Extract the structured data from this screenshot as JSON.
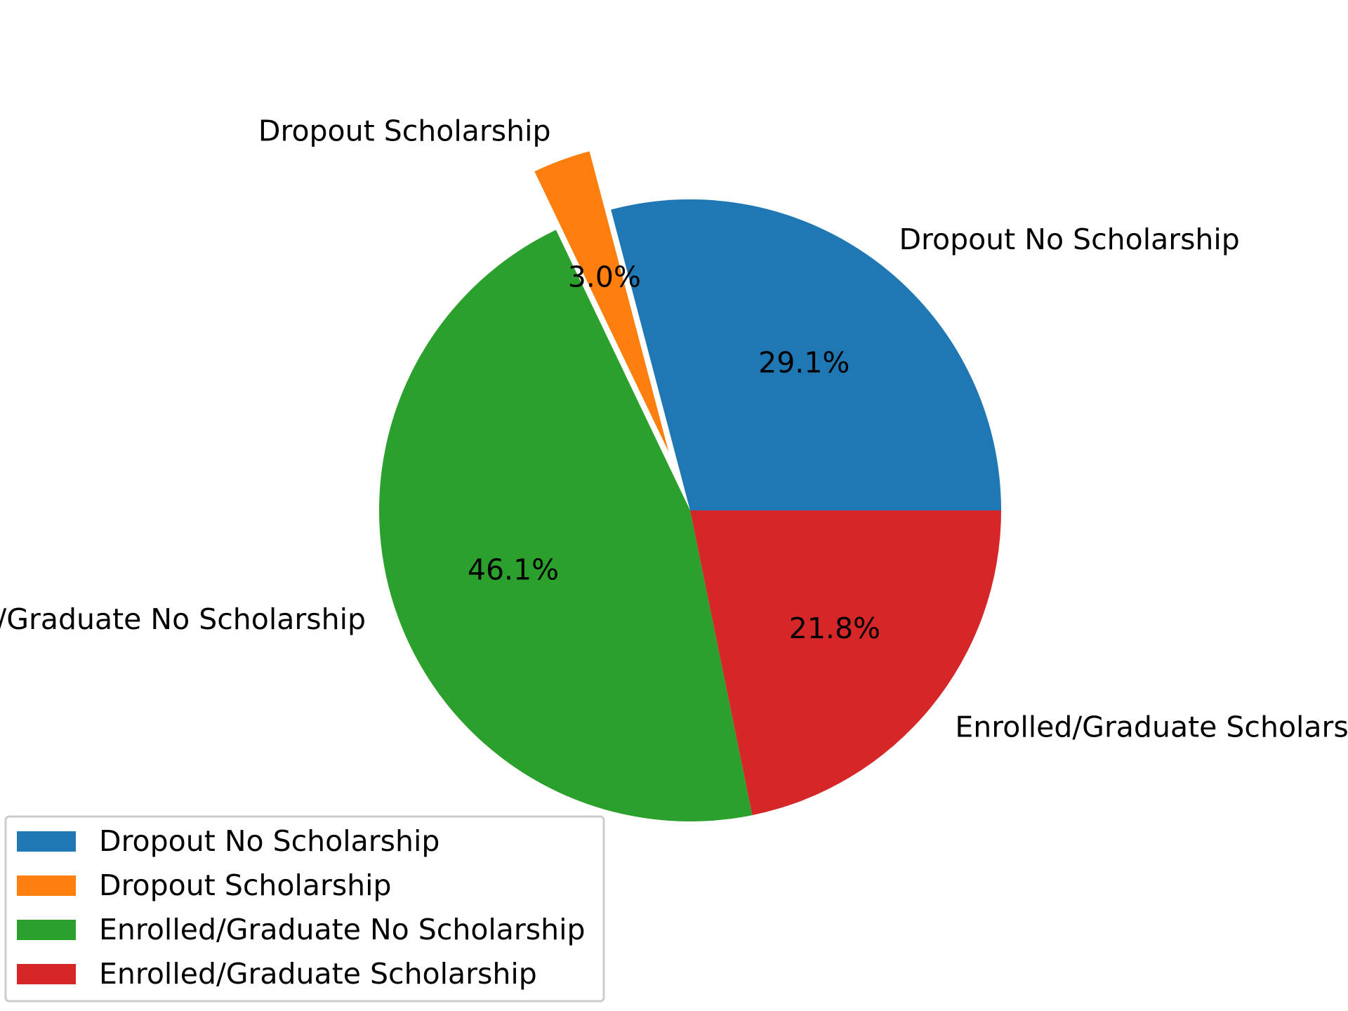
{
  "chart_data": {
    "type": "pie",
    "categories": [
      "Dropout No Scholarship",
      "Dropout Scholarship",
      "Enrolled/Graduate No Scholarship",
      "Enrolled/Graduate Scholarship"
    ],
    "values": [
      29.1,
      3.0,
      46.1,
      21.8
    ],
    "percent_labels": [
      "29.1%",
      "3.0%",
      "46.1%",
      "21.8%"
    ],
    "colors": [
      "#1f77b4",
      "#ff7f0e",
      "#2ca02c",
      "#d62728"
    ],
    "exploded": [
      false,
      true,
      false,
      false
    ],
    "start_angle_deg": 0,
    "direction": "counterclockwise",
    "legend": {
      "placement": "lower-left",
      "entries": [
        "Dropout No Scholarship",
        "Dropout Scholarship",
        "Enrolled/Graduate No Scholarship",
        "Enrolled/Graduate Scholarship"
      ]
    }
  }
}
